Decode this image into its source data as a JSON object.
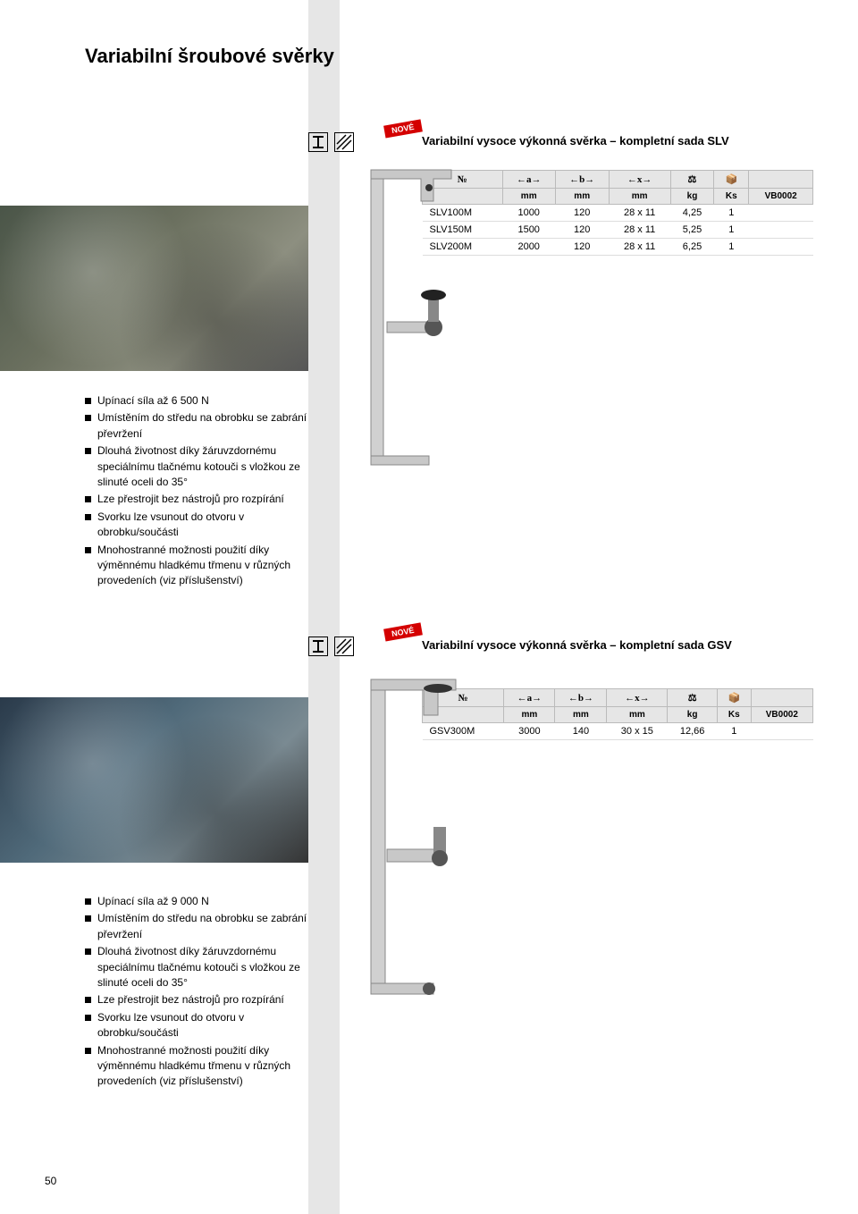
{
  "page_title": "Variabilní šroubové svěrky",
  "badge_text": "NOVÉ",
  "page_number": "50",
  "section_slv": {
    "title": "Variabilní vysoce výkonná svěrka – kompletní sada SLV",
    "headers": [
      "№",
      "←a→",
      "←b→",
      "←x→",
      "⚖",
      "📦",
      ""
    ],
    "units": [
      "",
      "mm",
      "mm",
      "mm",
      "kg",
      "Ks",
      "VB0002"
    ],
    "rows": [
      [
        "SLV100M",
        "1000",
        "120",
        "28 x 11",
        "4,25",
        "1",
        ""
      ],
      [
        "SLV150M",
        "1500",
        "120",
        "28 x 11",
        "5,25",
        "1",
        ""
      ],
      [
        "SLV200M",
        "2000",
        "120",
        "28 x 11",
        "6,25",
        "1",
        ""
      ]
    ],
    "features": [
      "Upínací síla až 6 500 N",
      "Umístěním do středu na obrobku se zabrání převržení",
      "Dlouhá životnost díky žáruvzdornému speciálnímu tlačnému kotouči s vložkou ze slinuté oceli do 35°",
      "Lze přestrojit bez nástrojů pro rozpírání",
      "Svorku lze vsunout do otvoru v obrobku/součásti",
      "Mnohostranné možnosti použití díky výměnnému hladkému třmenu v různých provedeních (viz příslušenství)"
    ]
  },
  "section_gsv": {
    "title": "Variabilní vysoce výkonná svěrka – kompletní sada GSV",
    "headers": [
      "№",
      "←a→",
      "←b→",
      "←x→",
      "⚖",
      "📦",
      ""
    ],
    "units": [
      "",
      "mm",
      "mm",
      "mm",
      "kg",
      "Ks",
      "VB0002"
    ],
    "rows": [
      [
        "GSV300M",
        "3000",
        "140",
        "30 x 15",
        "12,66",
        "1",
        ""
      ]
    ],
    "features": [
      "Upínací síla až 9 000 N",
      "Umístěním do středu na obrobku se zabrání převržení",
      "Dlouhá životnost díky žáruvzdornému speciálnímu tlačnému kotouči s vložkou ze slinuté oceli do 35°",
      "Lze přestrojit bez nástrojů pro rozpírání",
      "Svorku lze vsunout do otvoru v obrobku/součásti",
      "Mnohostranné možnosti použití díky výměnnému hladkému třmenu v různých provedeních (viz příslušenství)"
    ]
  },
  "colors": {
    "badge_bg": "#d40000",
    "gray_col": "#e6e6e6",
    "th_bg": "#e6e6e6",
    "border": "#bbbbbb"
  }
}
